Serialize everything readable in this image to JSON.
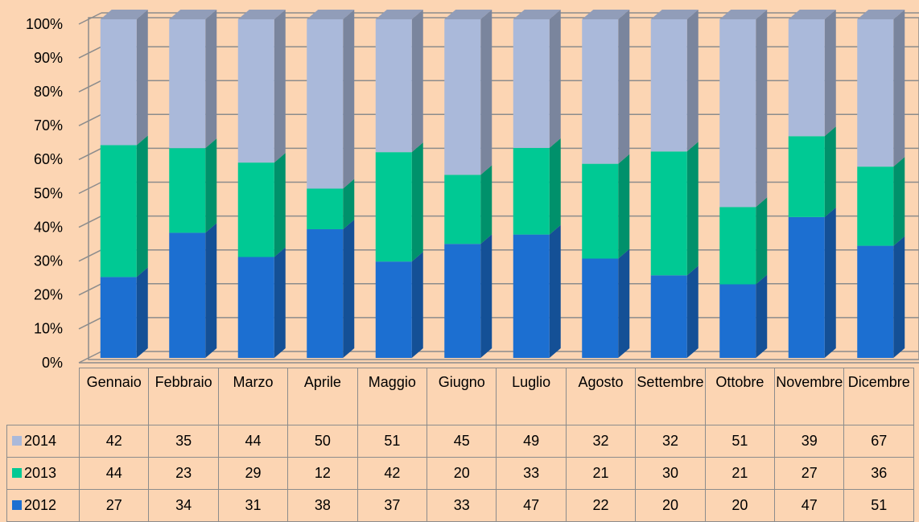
{
  "chart_data": {
    "type": "bar",
    "stacking": "percent",
    "three_d": true,
    "categories": [
      "Gennaio",
      "Febbraio",
      "Marzo",
      "Aprile",
      "Maggio",
      "Giugno",
      "Luglio",
      "Agosto",
      "Settembre",
      "Ottobre",
      "Novembre",
      "Dicembre"
    ],
    "series": [
      {
        "name": "2012",
        "color": "#1c6fd1",
        "values": [
          27,
          34,
          31,
          38,
          37,
          33,
          47,
          22,
          20,
          20,
          47,
          51
        ]
      },
      {
        "name": "2013",
        "color": "#00c994",
        "values": [
          44,
          23,
          29,
          12,
          42,
          20,
          33,
          21,
          30,
          21,
          27,
          36
        ]
      },
      {
        "name": "2014",
        "color": "#aab9da",
        "values": [
          42,
          35,
          44,
          50,
          51,
          45,
          49,
          32,
          32,
          51,
          39,
          67
        ]
      }
    ],
    "ylim": [
      0,
      100
    ],
    "yticks": [
      {
        "value": 0,
        "label": "0%"
      },
      {
        "value": 10,
        "label": "10%"
      },
      {
        "value": 20,
        "label": "20%"
      },
      {
        "value": 30,
        "label": "30%"
      },
      {
        "value": 40,
        "label": "40%"
      },
      {
        "value": 50,
        "label": "50%"
      },
      {
        "value": 60,
        "label": "60%"
      },
      {
        "value": 70,
        "label": "70%"
      },
      {
        "value": 80,
        "label": "80%"
      },
      {
        "value": 90,
        "label": "90%"
      },
      {
        "value": 100,
        "label": "100%"
      }
    ],
    "grid": true,
    "data_table": true
  }
}
